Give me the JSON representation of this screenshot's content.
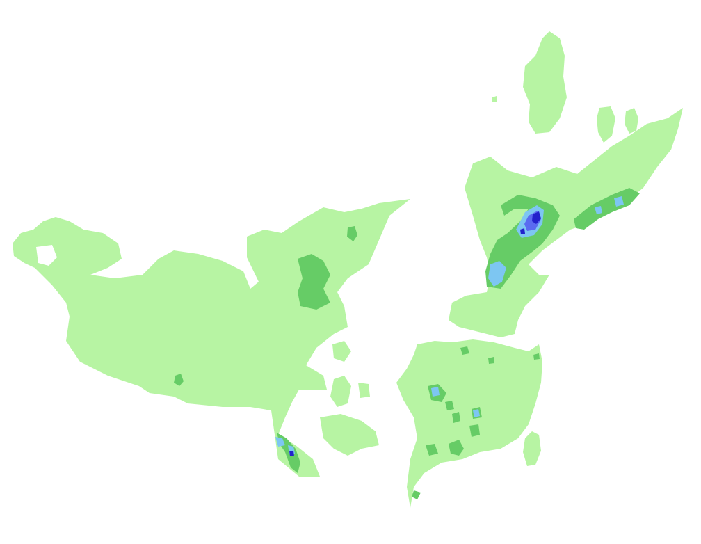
{
  "map": {
    "colors": {
      "background": "#ffffff",
      "level1": "#b7f4a3",
      "level2": "#66cc66",
      "level3": "#7dc6f2",
      "level4": "#5a6bf0",
      "level5": "#2222cc"
    }
  }
}
